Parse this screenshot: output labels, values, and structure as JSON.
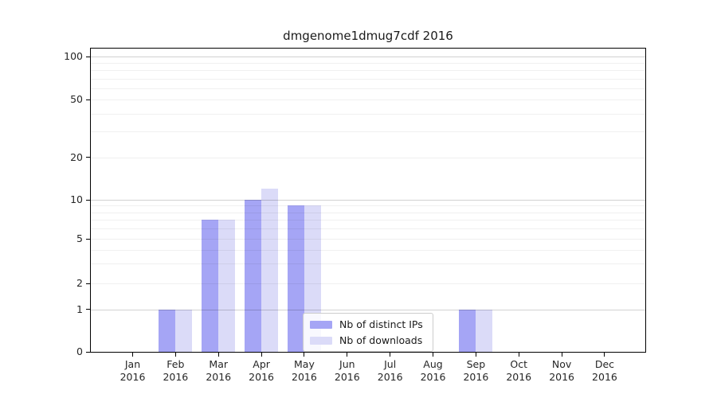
{
  "chart_data": {
    "type": "bar",
    "title": "dmgenome1dmug7cdf 2016",
    "categories": [
      "Jan",
      "Feb",
      "Mar",
      "Apr",
      "May",
      "Jun",
      "Jul",
      "Aug",
      "Sep",
      "Oct",
      "Nov",
      "Dec"
    ],
    "x_year_label": "2016",
    "series": [
      {
        "name": "Nb of distinct IPs",
        "color": "#a5a5f5",
        "values": [
          0,
          1,
          7,
          10,
          9,
          0,
          0,
          0,
          1,
          0,
          0,
          0
        ]
      },
      {
        "name": "Nb of downloads",
        "color": "#dbdbf8",
        "values": [
          0,
          1,
          7,
          12,
          9,
          0,
          0,
          0,
          1,
          0,
          0,
          0
        ]
      }
    ],
    "y_axis": {
      "scale": "symlog",
      "ylim": [
        0,
        100
      ],
      "tick_values": [
        0,
        1,
        2,
        5,
        10,
        20,
        50,
        100
      ],
      "major_gridlines": [
        1,
        10,
        100
      ],
      "minor_gridlines": [
        2,
        3,
        4,
        5,
        6,
        7,
        8,
        9,
        20,
        30,
        40,
        50,
        60,
        70,
        80,
        90
      ]
    },
    "legend": {
      "position": "lower center-right inside plot"
    },
    "grid": "on"
  }
}
